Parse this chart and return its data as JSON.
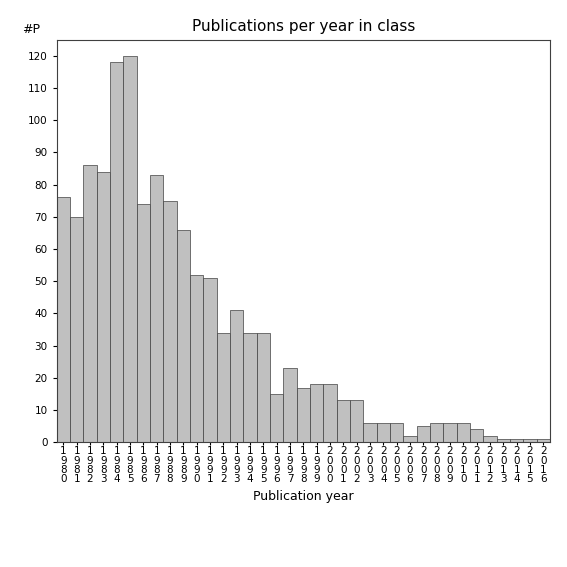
{
  "title": "Publications per year in class",
  "xlabel": "Publication year",
  "ylabel": "#P",
  "bar_color": "#c0c0c0",
  "bar_edge_color": "#404040",
  "ylim": [
    0,
    125
  ],
  "yticks": [
    0,
    10,
    20,
    30,
    40,
    50,
    60,
    70,
    80,
    90,
    100,
    110,
    120
  ],
  "categories": [
    "1\n9\n8\n0",
    "1\n9\n8\n1",
    "1\n9\n8\n2",
    "1\n9\n8\n3",
    "1\n9\n8\n4",
    "1\n9\n8\n5",
    "1\n9\n8\n6",
    "1\n9\n8\n7",
    "1\n9\n8\n8",
    "1\n9\n8\n9",
    "1\n9\n9\n0",
    "1\n9\n9\n1",
    "1\n9\n9\n2",
    "1\n9\n9\n3",
    "1\n9\n9\n4",
    "1\n9\n9\n5",
    "1\n9\n9\n6",
    "1\n9\n9\n7",
    "1\n9\n9\n8",
    "1\n9\n9\n9",
    "2\n0\n0\n0",
    "2\n0\n0\n1",
    "2\n0\n0\n2",
    "2\n0\n0\n3",
    "2\n0\n0\n4",
    "2\n0\n0\n5",
    "2\n0\n0\n6",
    "2\n0\n0\n7",
    "2\n0\n0\n8",
    "2\n0\n0\n9",
    "2\n0\n1\n0",
    "2\n0\n1\n1",
    "2\n0\n1\n2",
    "2\n0\n1\n3",
    "2\n0\n1\n4",
    "2\n0\n1\n5",
    "2\n0\n1\n6"
  ],
  "values": [
    76,
    70,
    86,
    84,
    118,
    120,
    74,
    83,
    75,
    66,
    52,
    51,
    34,
    41,
    34,
    34,
    15,
    23,
    17,
    18,
    18,
    13,
    13,
    6,
    6,
    6,
    2,
    5,
    6,
    6,
    6,
    4,
    2,
    1,
    1,
    1,
    1
  ],
  "background_color": "#ffffff",
  "title_fontsize": 11,
  "xlabel_fontsize": 9,
  "tick_fontsize": 7.5,
  "ylabel_fontsize": 9
}
